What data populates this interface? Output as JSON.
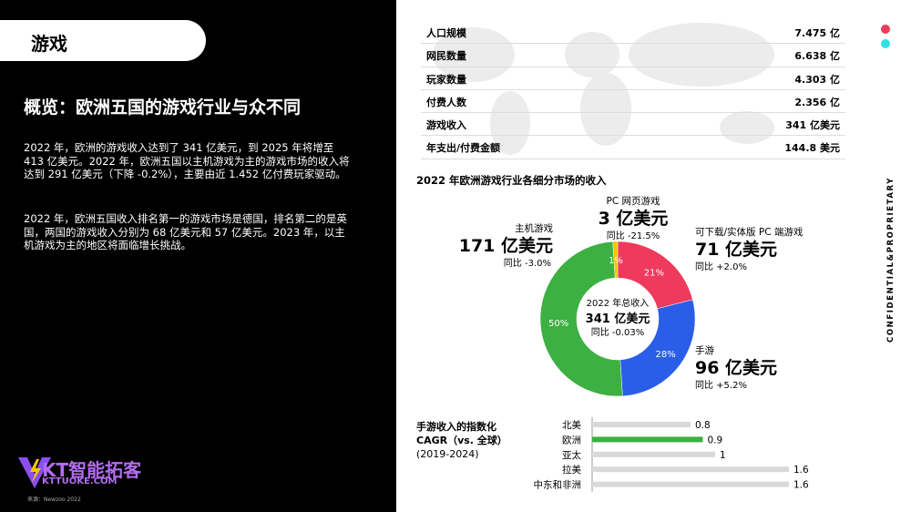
{
  "header": {
    "tab": "游戏",
    "title": "概览：欧洲五国的游戏行业与众不同",
    "paragraphs": [
      "2022 年，欧洲的游戏收入达到了 341 亿美元，到 2025 年将增至 413 亿美元。2022 年，欧洲五国以主机游戏为主的游戏市场的收入将达到 291 亿美元（下降 -0.2%），主要由近 1.452 亿付费玩家驱动。",
      "2022 年，欧洲五国收入排名第一的游戏市场是德国，排名第二的是英国，两国的游戏收入分别为 68 亿美元和 57 亿美元。2023 年，以主机游戏为主的地区将面临增长挑战。"
    ]
  },
  "table": {
    "rows": [
      [
        "人口规模",
        "7.475 亿"
      ],
      [
        "网民数量",
        "6.638 亿"
      ],
      [
        "玩家数量",
        "4.303 亿"
      ],
      [
        "付费人数",
        "2.356 亿"
      ],
      [
        "游戏收入",
        "341 亿美元"
      ],
      [
        "年支出/付费金额",
        "144.8 美元"
      ]
    ]
  },
  "side_label": "CONFIDENTIAL&PROPRIETARY",
  "logo": {
    "name": "KT智能拓客",
    "url": "KTTUOKE.COM"
  },
  "source": "来源：Newzoo 2022",
  "chart_data": [
    {
      "type": "donut",
      "title": "2022 年欧洲游戏行业各细分市场的收入",
      "categories": [
        "可下载/实体版 PC 端游戏",
        "手游",
        "主机游戏",
        "PC 网页游戏"
      ],
      "values": [
        21,
        28,
        50,
        1
      ],
      "value_labels": [
        "21%",
        "28%",
        "50%",
        "1%"
      ],
      "colors": [
        "#ee3a5c",
        "#2a5ee8",
        "#3cb043",
        "#f5c400"
      ],
      "revenue": [
        "71 亿美元",
        "96 亿美元",
        "171 亿美元",
        "3 亿美元"
      ],
      "change": [
        "同比 +2.0%",
        "同比 +5.2%",
        "同比 -3.0%",
        "同比 -21.5%"
      ],
      "center": {
        "label": "2022 年总收入",
        "total": "341 亿美元",
        "change": "同比 -0.03%"
      }
    },
    {
      "type": "hbar",
      "title": [
        "手游收入的指数化",
        "CAGR（vs. 全球）",
        "(2019-2024)"
      ],
      "categories": [
        "北美",
        "欧洲",
        "亚太",
        "拉美",
        "中东和非洲"
      ],
      "values": [
        0.8,
        0.9,
        1,
        1.6,
        1.6
      ],
      "colors": [
        "#d9d9d9",
        "#3cb043",
        "#d9d9d9",
        "#d9d9d9",
        "#d9d9d9"
      ]
    }
  ]
}
